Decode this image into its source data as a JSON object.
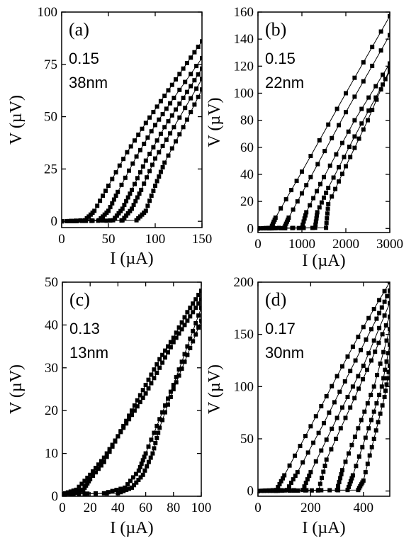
{
  "chart_data": [
    {
      "id": "a",
      "type": "scatter",
      "panel_label": "(a)",
      "annotations": [
        "0.15",
        "38nm"
      ],
      "xlabel": "I (µA)",
      "ylabel": "V (µV)",
      "xlim": [
        0,
        150
      ],
      "ylim": [
        -3,
        100
      ],
      "xticks": [
        0,
        50,
        100,
        150
      ],
      "yticks": [
        0,
        25,
        50,
        75,
        100
      ],
      "marker": "square",
      "series": [
        {
          "x": [
            0,
            25,
            35,
            50,
            70,
            90,
            110,
            130,
            150
          ],
          "y": [
            0,
            0.5,
            5,
            17,
            33,
            47,
            60,
            73,
            86
          ]
        },
        {
          "x": [
            0,
            40,
            50,
            60,
            80,
            100,
            120,
            150
          ],
          "y": [
            0,
            0.5,
            5,
            14,
            31,
            46,
            59,
            78
          ]
        },
        {
          "x": [
            0,
            55,
            65,
            75,
            90,
            110,
            130,
            150
          ],
          "y": [
            0,
            0.5,
            6,
            15,
            29,
            45,
            59,
            73
          ]
        },
        {
          "x": [
            0,
            65,
            75,
            85,
            100,
            120,
            150
          ],
          "y": [
            0,
            0.5,
            6,
            15,
            30,
            45,
            68
          ]
        },
        {
          "x": [
            0,
            80,
            90,
            100,
            110,
            130,
            150
          ],
          "y": [
            0,
            0.5,
            5,
            17,
            28,
            45,
            63
          ]
        }
      ]
    },
    {
      "id": "b",
      "type": "scatter",
      "panel_label": "(b)",
      "annotations": [
        "0.15",
        "22nm"
      ],
      "xlabel": "I (µA)",
      "ylabel": "V (µV)",
      "xlim": [
        0,
        3000
      ],
      "ylim": [
        -3,
        160
      ],
      "xticks": [
        0,
        1000,
        2000,
        3000
      ],
      "yticks": [
        0,
        20,
        40,
        60,
        80,
        100,
        120,
        140,
        160
      ],
      "marker": "square",
      "series": [
        {
          "x": [
            0,
            300,
            400,
            1000,
            2000,
            3000
          ],
          "y": [
            0,
            0.5,
            8,
            42,
            100,
            157
          ]
        },
        {
          "x": [
            0,
            600,
            700,
            1200,
            2000,
            3000
          ],
          "y": [
            0,
            0.5,
            8,
            38,
            86,
            143
          ]
        },
        {
          "x": [
            0,
            1000,
            1100,
            1500,
            2200,
            3000
          ],
          "y": [
            0,
            0.5,
            12,
            38,
            80,
            122
          ]
        },
        {
          "x": [
            0,
            1300,
            1350,
            1600,
            2200,
            3000
          ],
          "y": [
            0,
            0.5,
            12,
            30,
            68,
            116
          ]
        },
        {
          "x": [
            0,
            1550,
            1600,
            2000,
            2500,
            3000
          ],
          "y": [
            0,
            0.5,
            18,
            46,
            80,
            118
          ]
        }
      ]
    },
    {
      "id": "c",
      "type": "scatter",
      "panel_label": "(c)",
      "annotations": [
        "0.13",
        "13nm"
      ],
      "xlabel": "I (µA)",
      "ylabel": "V (µV)",
      "xlim": [
        0,
        100
      ],
      "ylim": [
        0,
        50
      ],
      "xticks": [
        0,
        20,
        40,
        60,
        80,
        100
      ],
      "yticks": [
        0,
        10,
        20,
        30,
        40,
        50
      ],
      "marker": "square",
      "series": [
        {
          "x": [
            0,
            10,
            20,
            30,
            40,
            50,
            60,
            70,
            80,
            90,
            100
          ],
          "y": [
            0.5,
            1.5,
            5,
            9,
            14,
            20,
            26,
            32,
            37,
            43,
            48
          ]
        },
        {
          "x": [
            0,
            10,
            15,
            20,
            30,
            40,
            50,
            60,
            70,
            80,
            90,
            100
          ],
          "y": [
            0.5,
            0.8,
            1.5,
            4,
            8,
            14,
            19,
            24,
            30,
            36,
            41,
            46
          ]
        },
        {
          "x": [
            0,
            30,
            45,
            55,
            60,
            70,
            80,
            90,
            100
          ],
          "y": [
            0.5,
            0.7,
            2,
            6,
            10,
            18,
            26,
            35,
            44
          ]
        },
        {
          "x": [
            0,
            40,
            50,
            58,
            65,
            70,
            80,
            90,
            100
          ],
          "y": [
            0.5,
            0.7,
            2,
            5,
            10,
            16,
            25,
            33,
            41
          ]
        }
      ]
    },
    {
      "id": "d",
      "type": "scatter",
      "panel_label": "(d)",
      "annotations": [
        "0.17",
        "30nm"
      ],
      "xlabel": "I (µA)",
      "ylabel": "V (µV)",
      "xlim": [
        0,
        500
      ],
      "ylim": [
        -5,
        200
      ],
      "xticks": [
        0,
        200,
        400
      ],
      "yticks": [
        0,
        50,
        100,
        150,
        200
      ],
      "marker": "square",
      "series": [
        {
          "x": [
            0,
            70,
            100,
            200,
            300,
            400,
            500
          ],
          "y": [
            0,
            1,
            15,
            62,
            110,
            157,
            200
          ]
        },
        {
          "x": [
            0,
            110,
            150,
            250,
            350,
            450,
            500
          ],
          "y": [
            0,
            1,
            18,
            65,
            115,
            165,
            192
          ]
        },
        {
          "x": [
            0,
            170,
            200,
            300,
            400,
            500
          ],
          "y": [
            0,
            1,
            18,
            70,
            120,
            180
          ]
        },
        {
          "x": [
            0,
            230,
            260,
            350,
            430,
            500
          ],
          "y": [
            0,
            1,
            30,
            80,
            125,
            167
          ]
        },
        {
          "x": [
            0,
            300,
            320,
            380,
            440,
            500
          ],
          "y": [
            0,
            1,
            20,
            60,
            100,
            155
          ]
        },
        {
          "x": [
            0,
            340,
            360,
            420,
            470,
            500
          ],
          "y": [
            0,
            1,
            15,
            60,
            100,
            140
          ]
        },
        {
          "x": [
            0,
            380,
            400,
            440,
            480,
            500
          ],
          "y": [
            0,
            1,
            10,
            50,
            90,
            120
          ]
        }
      ]
    }
  ]
}
